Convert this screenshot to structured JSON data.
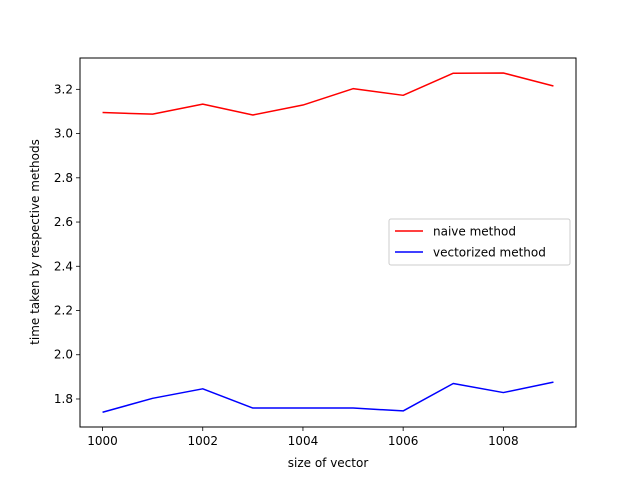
{
  "chart_data": {
    "type": "line",
    "title": "",
    "xlabel": "size of vector",
    "ylabel": "time taken by respective methods",
    "x": [
      1000,
      1001,
      1002,
      1003,
      1004,
      1005,
      1006,
      1007,
      1008,
      1009
    ],
    "series": [
      {
        "name": "naive method",
        "color": "#ff0000",
        "values": [
          3.095,
          3.088,
          3.133,
          3.084,
          3.129,
          3.203,
          3.173,
          3.273,
          3.274,
          3.215
        ]
      },
      {
        "name": "vectorized method",
        "color": "#0000ff",
        "values": [
          1.74,
          1.803,
          1.846,
          1.759,
          1.759,
          1.759,
          1.746,
          1.87,
          1.829,
          1.876
        ]
      }
    ],
    "xlim": [
      999.55,
      1009.45
    ],
    "ylim": [
      1.6733,
      3.3417
    ],
    "xticks": [
      1000,
      1002,
      1004,
      1006,
      1008
    ],
    "xtick_labels": [
      "1000",
      "1002",
      "1004",
      "1006",
      "1008"
    ],
    "yticks": [
      1.8,
      2.0,
      2.2,
      2.4,
      2.6,
      2.8,
      3.0,
      3.2
    ],
    "ytick_labels": [
      "1.8",
      "2.0",
      "2.2",
      "2.4",
      "2.6",
      "2.8",
      "3.0",
      "3.2"
    ],
    "grid": false,
    "legend_position": "center-right"
  }
}
